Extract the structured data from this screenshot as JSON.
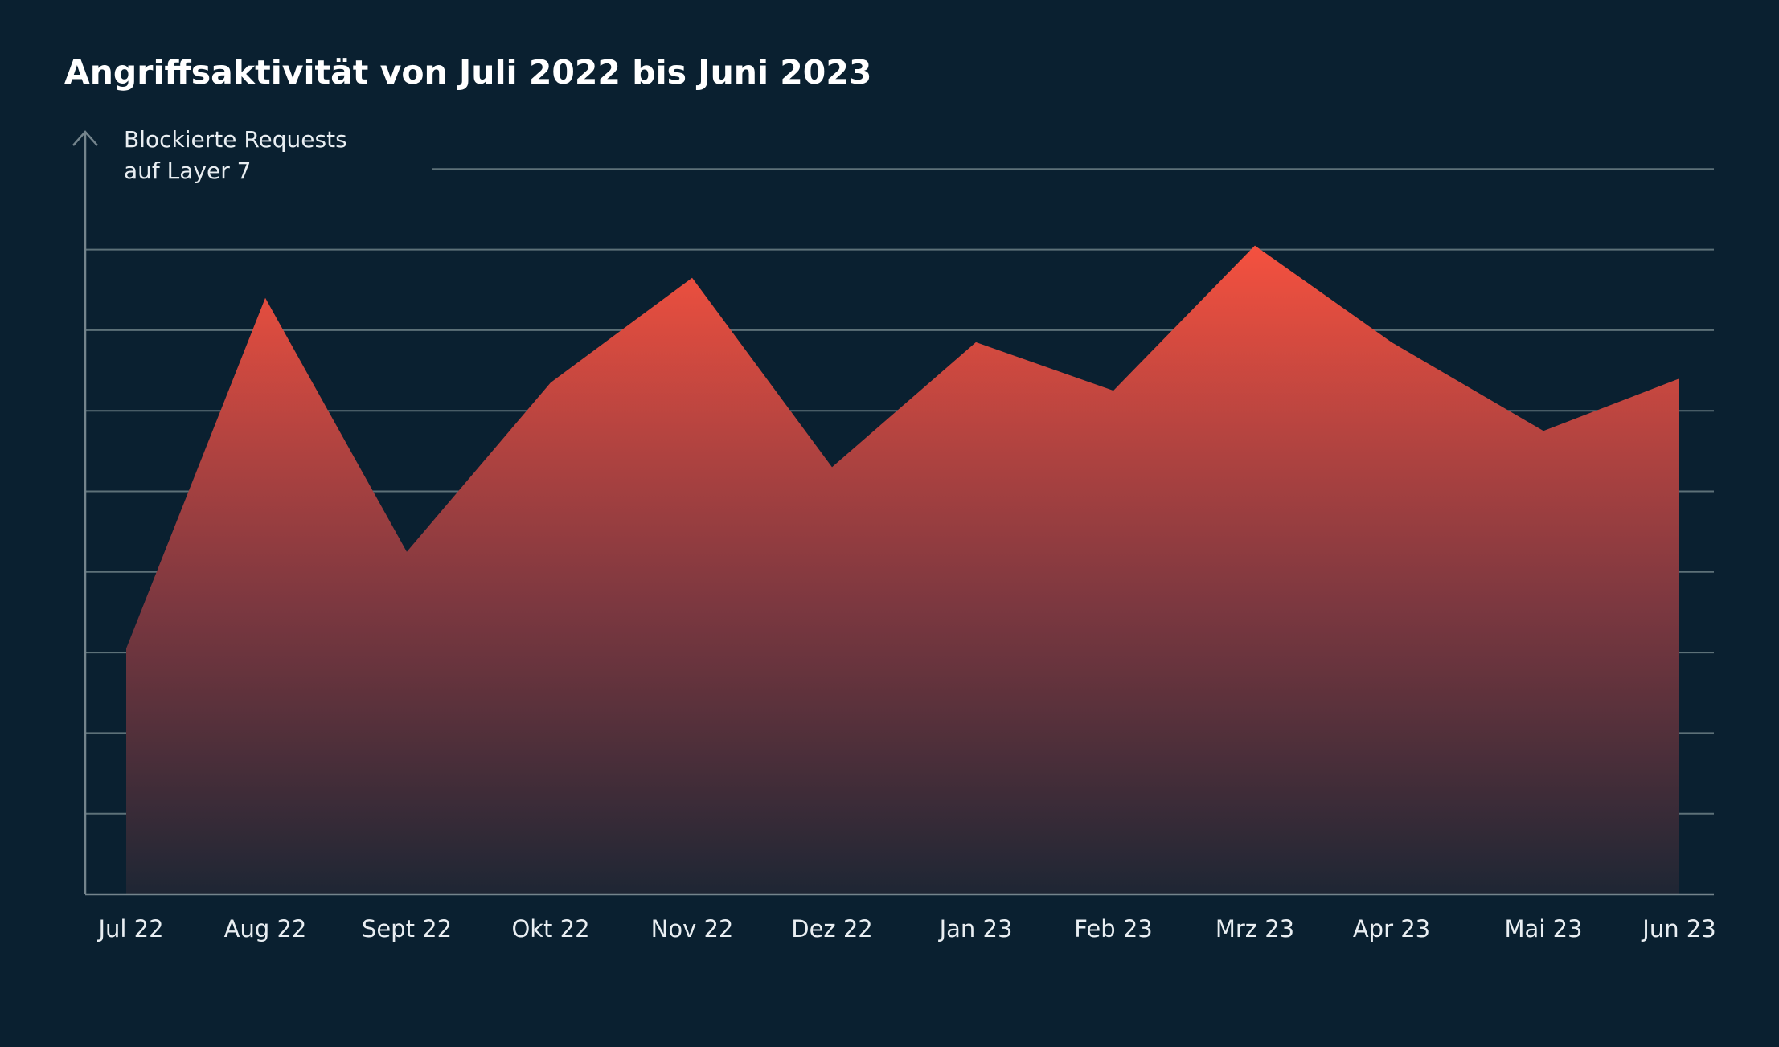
{
  "chart_data": {
    "type": "area",
    "title": "Angriffsaktivität von Juli 2022 bis Juni 2023",
    "ylabel_lines": [
      "Blockierte Requests",
      "auf Layer 7"
    ],
    "xlabel": "",
    "categories": [
      "Jul 22",
      "Aug 22",
      "Sept 22",
      "Okt 22",
      "Nov 22",
      "Dez 22",
      "Jan 23",
      "Feb 23",
      "Mrz 23",
      "Apr 23",
      "Mai 23",
      "Jun 23"
    ],
    "values": [
      30.5,
      74,
      42.5,
      63.5,
      76.5,
      53,
      68.5,
      62.5,
      80.5,
      68.5,
      57.5,
      64
    ],
    "ylim": [
      0,
      100
    ],
    "y_ticks_shown": false,
    "grid_y": [
      10,
      20,
      30,
      40,
      50,
      60,
      70,
      80,
      90
    ],
    "grid": true,
    "legend": "none",
    "colors": {
      "background": "#0a2030",
      "area_top": "#f5513f",
      "area_bottom": "#1e2634",
      "grid": "#5d7178",
      "axis": "#74848c",
      "text": "#e9eef2"
    }
  }
}
